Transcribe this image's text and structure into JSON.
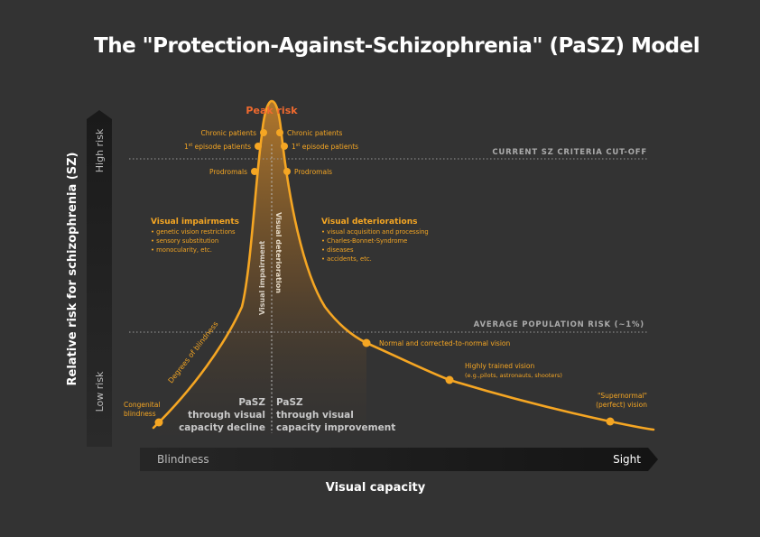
{
  "title": "The \"Protection-Against-Schizophrenia\" (PaSZ) Model",
  "y_axis": {
    "label": "Relative risk for schizophrenia (SZ)",
    "high": "High risk",
    "low": "Low risk"
  },
  "x_axis": {
    "label": "Visual capacity",
    "left": "Blindness",
    "right": "Sight"
  },
  "peak_label": "Peak risk",
  "thresholds": {
    "cutoff": "CURRENT SZ CRITERIA CUT-OFF",
    "population": "AVERAGE POPULATION RISK (~1%)"
  },
  "left_points": {
    "chronic": "Chronic patients",
    "first_sup": "st",
    "first_pre": "1",
    "first_post": " episode patients",
    "prodromals": "Prodromals"
  },
  "right_points": {
    "chronic": "Chronic patients",
    "first_sup": "st",
    "first_pre": "1",
    "first_post": " episode patients",
    "prodromals": "Prodromals"
  },
  "impairments": {
    "heading": "Visual impairments",
    "items": [
      "• genetic vision restrictions",
      "• sensory substitution",
      "• monocularity, etc."
    ]
  },
  "deteriorations": {
    "heading": "Visual deteriorations",
    "items": [
      "• visual acquisition and processing",
      "• Charles-Bonnet-Syndrome",
      "• diseases",
      "• accidents, etc."
    ]
  },
  "vertical_labels": {
    "impairment": "Visual impairment",
    "deterioration": "Visual deterioration"
  },
  "degrees_label": "Degrees of blindness",
  "congenital": [
    "Congenital",
    "blindness"
  ],
  "normal_vision": "Normal and corrected-to-normal vision",
  "trained_vision": [
    "Highly trained vision",
    "(e.g.,pilots, astronauts, shooters)"
  ],
  "supernormal": [
    "\"Supernormal\"",
    "(perfect) vision"
  ],
  "pasz_left": [
    "PaSZ",
    "through visual",
    "capacity decline"
  ],
  "pasz_right": [
    "PaSZ",
    "through visual",
    "capacity improvement"
  ],
  "colors": {
    "background": "#333333",
    "curve": "#f5a623",
    "peak": "#f26a2e",
    "text_orange": "#f5a623",
    "threshold": "#aaaaaa"
  }
}
